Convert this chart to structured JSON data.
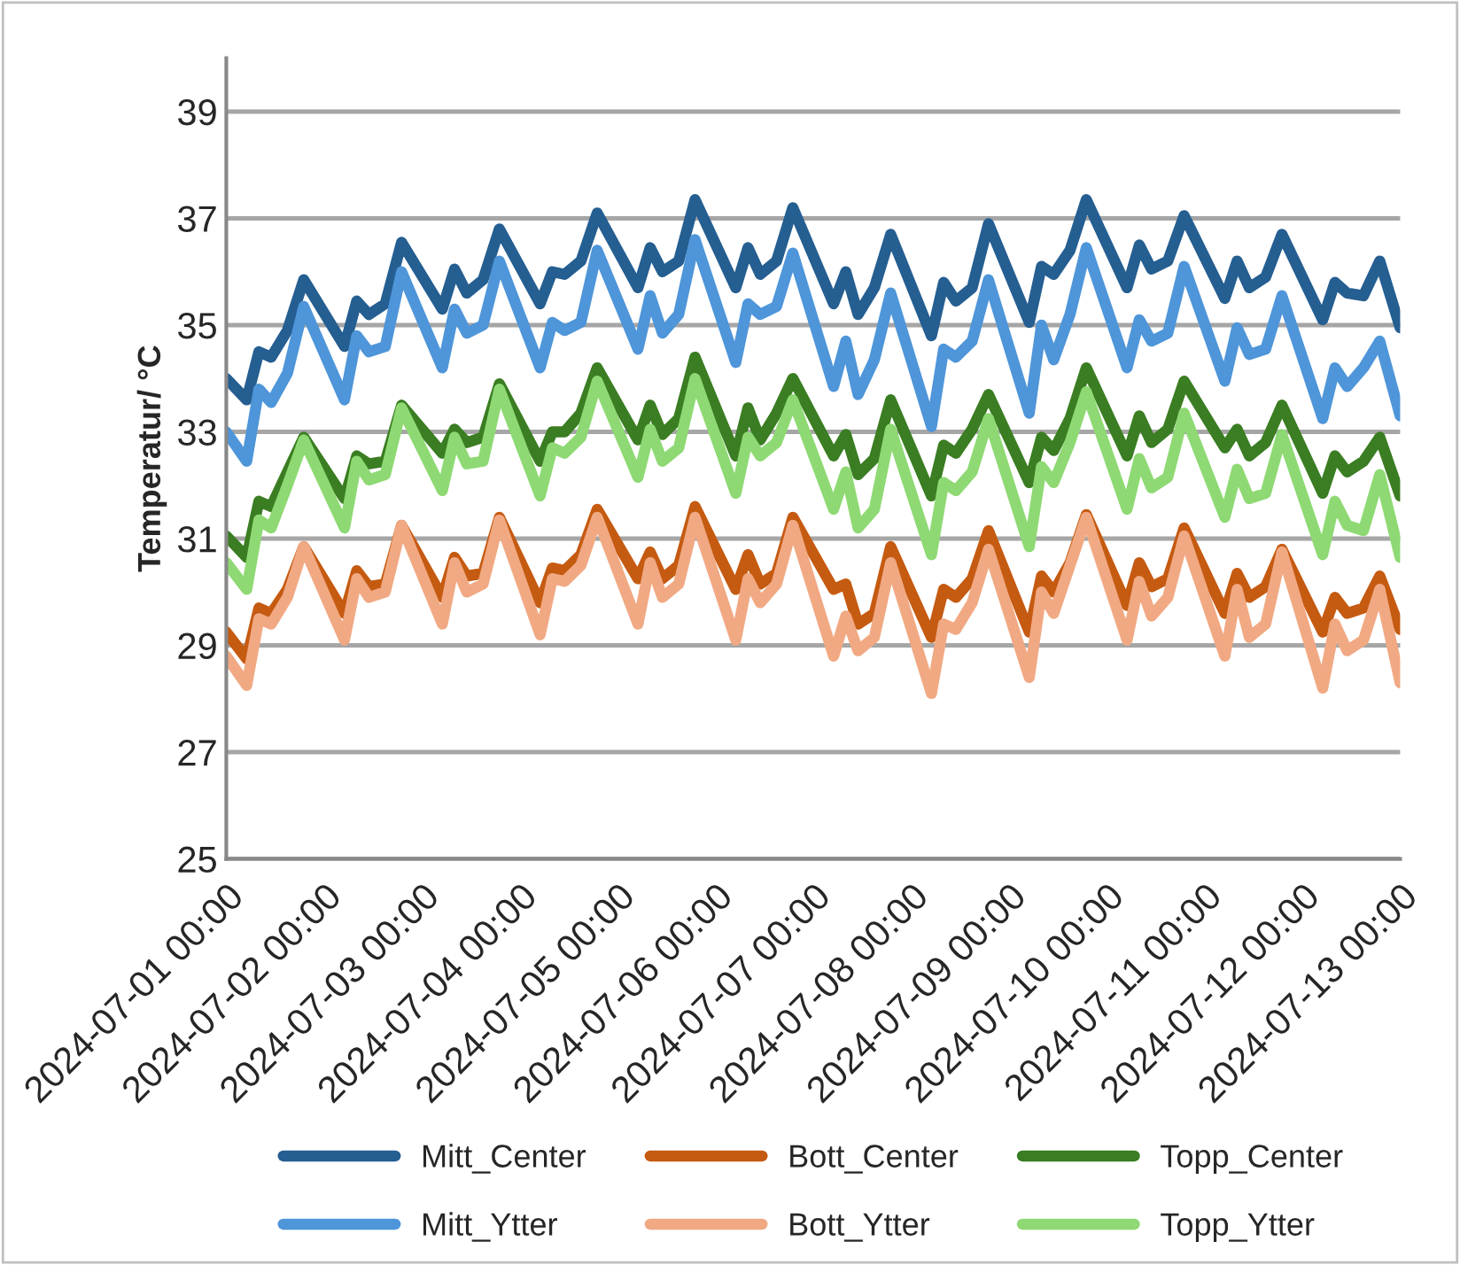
{
  "chart_data": {
    "type": "line",
    "ylabel": "Temperatur/ °C",
    "x": [
      "2024-07-01T00:00",
      "2024-07-01T05:00",
      "2024-07-01T08:00",
      "2024-07-01T11:00",
      "2024-07-01T15:00",
      "2024-07-01T19:00",
      "2024-07-02T05:00",
      "2024-07-02T08:00",
      "2024-07-02T11:00",
      "2024-07-02T15:00",
      "2024-07-02T19:00",
      "2024-07-03T05:00",
      "2024-07-03T08:00",
      "2024-07-03T11:00",
      "2024-07-03T15:00",
      "2024-07-03T19:00",
      "2024-07-04T05:00",
      "2024-07-04T08:00",
      "2024-07-04T11:00",
      "2024-07-04T15:00",
      "2024-07-04T19:00",
      "2024-07-05T05:00",
      "2024-07-05T08:00",
      "2024-07-05T11:00",
      "2024-07-05T15:00",
      "2024-07-05T19:00",
      "2024-07-06T05:00",
      "2024-07-06T08:00",
      "2024-07-06T11:00",
      "2024-07-06T15:00",
      "2024-07-06T19:00",
      "2024-07-07T05:00",
      "2024-07-07T08:00",
      "2024-07-07T11:00",
      "2024-07-07T15:00",
      "2024-07-07T19:00",
      "2024-07-08T05:00",
      "2024-07-08T08:00",
      "2024-07-08T11:00",
      "2024-07-08T15:00",
      "2024-07-08T19:00",
      "2024-07-09T05:00",
      "2024-07-09T08:00",
      "2024-07-09T11:00",
      "2024-07-09T15:00",
      "2024-07-09T19:00",
      "2024-07-10T05:00",
      "2024-07-10T08:00",
      "2024-07-10T11:00",
      "2024-07-10T15:00",
      "2024-07-10T19:00",
      "2024-07-11T05:00",
      "2024-07-11T08:00",
      "2024-07-11T11:00",
      "2024-07-11T15:00",
      "2024-07-11T19:00",
      "2024-07-12T05:00",
      "2024-07-12T08:00",
      "2024-07-12T11:00",
      "2024-07-12T15:00",
      "2024-07-12T19:00",
      "2024-07-13T00:00"
    ],
    "series": [
      {
        "name": "Mitt_Center",
        "color": "#255e91",
        "values": [
          34.0,
          33.6,
          34.5,
          34.4,
          34.9,
          35.85,
          34.6,
          35.45,
          35.2,
          35.4,
          36.55,
          35.3,
          36.05,
          35.6,
          35.85,
          36.8,
          35.4,
          36.0,
          35.95,
          36.2,
          37.1,
          35.7,
          36.45,
          36.0,
          36.2,
          37.35,
          35.7,
          36.45,
          35.95,
          36.2,
          37.2,
          35.4,
          36.0,
          35.2,
          35.7,
          36.7,
          34.8,
          35.8,
          35.45,
          35.7,
          36.9,
          35.05,
          36.1,
          35.95,
          36.4,
          37.35,
          35.7,
          36.5,
          36.05,
          36.2,
          37.05,
          35.5,
          36.2,
          35.7,
          35.9,
          36.7,
          35.1,
          35.8,
          35.6,
          35.55,
          36.2,
          34.95
        ]
      },
      {
        "name": "Mitt_Ytter",
        "color": "#4e95d9",
        "values": [
          33.0,
          32.45,
          33.8,
          33.55,
          34.1,
          35.35,
          33.6,
          34.8,
          34.5,
          34.6,
          36.0,
          34.2,
          35.3,
          34.85,
          35.0,
          36.2,
          34.2,
          35.05,
          34.9,
          35.05,
          36.4,
          34.55,
          35.55,
          34.85,
          35.2,
          36.6,
          34.3,
          35.4,
          35.2,
          35.35,
          36.35,
          33.85,
          34.7,
          33.7,
          34.35,
          35.6,
          33.1,
          34.55,
          34.4,
          34.7,
          35.85,
          33.35,
          35.0,
          34.35,
          35.2,
          36.45,
          34.2,
          35.1,
          34.7,
          34.85,
          36.1,
          33.95,
          34.95,
          34.45,
          34.55,
          35.55,
          33.25,
          34.2,
          33.85,
          34.2,
          34.7,
          33.3
        ]
      },
      {
        "name": "Bott_Center",
        "color": "#c55a11",
        "values": [
          29.25,
          28.75,
          29.7,
          29.6,
          30.05,
          30.85,
          29.6,
          30.4,
          30.1,
          30.15,
          31.25,
          29.9,
          30.65,
          30.3,
          30.35,
          31.4,
          29.8,
          30.45,
          30.4,
          30.7,
          31.55,
          30.25,
          30.75,
          30.25,
          30.5,
          31.6,
          30.05,
          30.7,
          30.15,
          30.35,
          31.4,
          30.05,
          30.15,
          29.4,
          29.6,
          30.85,
          29.15,
          30.05,
          29.9,
          30.25,
          31.15,
          29.25,
          30.3,
          30.0,
          30.55,
          31.45,
          29.75,
          30.55,
          30.1,
          30.25,
          31.2,
          29.6,
          30.35,
          29.9,
          30.1,
          30.8,
          29.25,
          29.9,
          29.6,
          29.7,
          30.3,
          29.3
        ]
      },
      {
        "name": "Bott_Ytter",
        "color": "#f1a983",
        "values": [
          28.8,
          28.25,
          29.5,
          29.4,
          29.9,
          30.85,
          29.1,
          30.25,
          29.9,
          30.0,
          31.25,
          29.4,
          30.55,
          30.0,
          30.15,
          31.35,
          29.2,
          30.25,
          30.2,
          30.5,
          31.4,
          29.4,
          30.55,
          29.9,
          30.15,
          31.4,
          29.1,
          30.25,
          29.8,
          30.15,
          31.25,
          28.8,
          29.55,
          28.9,
          29.15,
          30.55,
          28.1,
          29.4,
          29.3,
          29.8,
          30.8,
          28.4,
          30.0,
          29.6,
          30.5,
          31.4,
          29.1,
          30.2,
          29.55,
          29.9,
          31.05,
          28.8,
          30.05,
          29.15,
          29.4,
          30.75,
          28.2,
          29.4,
          28.9,
          29.1,
          30.05,
          28.3
        ]
      },
      {
        "name": "Topp_Center",
        "color": "#3a7d22",
        "values": [
          31.05,
          30.65,
          31.7,
          31.6,
          32.25,
          32.9,
          31.75,
          32.55,
          32.4,
          32.45,
          33.5,
          32.6,
          33.05,
          32.8,
          32.9,
          33.9,
          32.45,
          33.0,
          33.0,
          33.35,
          34.2,
          32.85,
          33.5,
          32.95,
          33.25,
          34.4,
          32.55,
          33.45,
          32.85,
          33.35,
          34.0,
          32.55,
          32.95,
          32.2,
          32.5,
          33.6,
          31.8,
          32.75,
          32.6,
          33.05,
          33.7,
          32.05,
          32.9,
          32.65,
          33.25,
          34.2,
          32.55,
          33.3,
          32.8,
          33.05,
          33.95,
          32.7,
          33.05,
          32.55,
          32.8,
          33.5,
          31.85,
          32.55,
          32.25,
          32.45,
          32.9,
          31.8
        ]
      },
      {
        "name": "Topp_Ytter",
        "color": "#8ed973",
        "values": [
          30.55,
          30.05,
          31.35,
          31.2,
          32.0,
          32.85,
          31.2,
          32.45,
          32.1,
          32.2,
          33.45,
          31.9,
          32.9,
          32.4,
          32.45,
          33.8,
          31.8,
          32.7,
          32.6,
          32.9,
          33.95,
          32.15,
          33.05,
          32.45,
          32.7,
          34.0,
          31.85,
          32.9,
          32.55,
          32.8,
          33.6,
          31.55,
          32.25,
          31.2,
          31.55,
          33.05,
          30.7,
          32.05,
          31.9,
          32.25,
          33.25,
          30.85,
          32.35,
          32.05,
          32.8,
          33.75,
          31.55,
          32.5,
          31.95,
          32.15,
          33.35,
          31.4,
          32.3,
          31.75,
          31.85,
          32.95,
          30.7,
          31.7,
          31.25,
          31.15,
          32.2,
          30.65
        ]
      }
    ],
    "xlim": [
      "2024-07-01T00:00",
      "2024-07-13T00:00"
    ],
    "xticks": [
      {
        "value": "2024-07-01T00:00",
        "label": "2024-07-01 00:00"
      },
      {
        "value": "2024-07-02T00:00",
        "label": "2024-07-02 00:00"
      },
      {
        "value": "2024-07-03T00:00",
        "label": "2024-07-03 00:00"
      },
      {
        "value": "2024-07-04T00:00",
        "label": "2024-07-04 00:00"
      },
      {
        "value": "2024-07-05T00:00",
        "label": "2024-07-05 00:00"
      },
      {
        "value": "2024-07-06T00:00",
        "label": "2024-07-06 00:00"
      },
      {
        "value": "2024-07-07T00:00",
        "label": "2024-07-07 00:00"
      },
      {
        "value": "2024-07-08T00:00",
        "label": "2024-07-08 00:00"
      },
      {
        "value": "2024-07-09T00:00",
        "label": "2024-07-09 00:00"
      },
      {
        "value": "2024-07-10T00:00",
        "label": "2024-07-10 00:00"
      },
      {
        "value": "2024-07-11T00:00",
        "label": "2024-07-11 00:00"
      },
      {
        "value": "2024-07-12T00:00",
        "label": "2024-07-12 00:00"
      },
      {
        "value": "2024-07-13T00:00",
        "label": "2024-07-13 00:00"
      }
    ],
    "ylim": [
      25,
      40
    ],
    "yticks": [
      25,
      27,
      29,
      31,
      33,
      35,
      37,
      39
    ],
    "grid": "y",
    "legend": "bottom",
    "marker": "none",
    "line_style": "solid"
  }
}
